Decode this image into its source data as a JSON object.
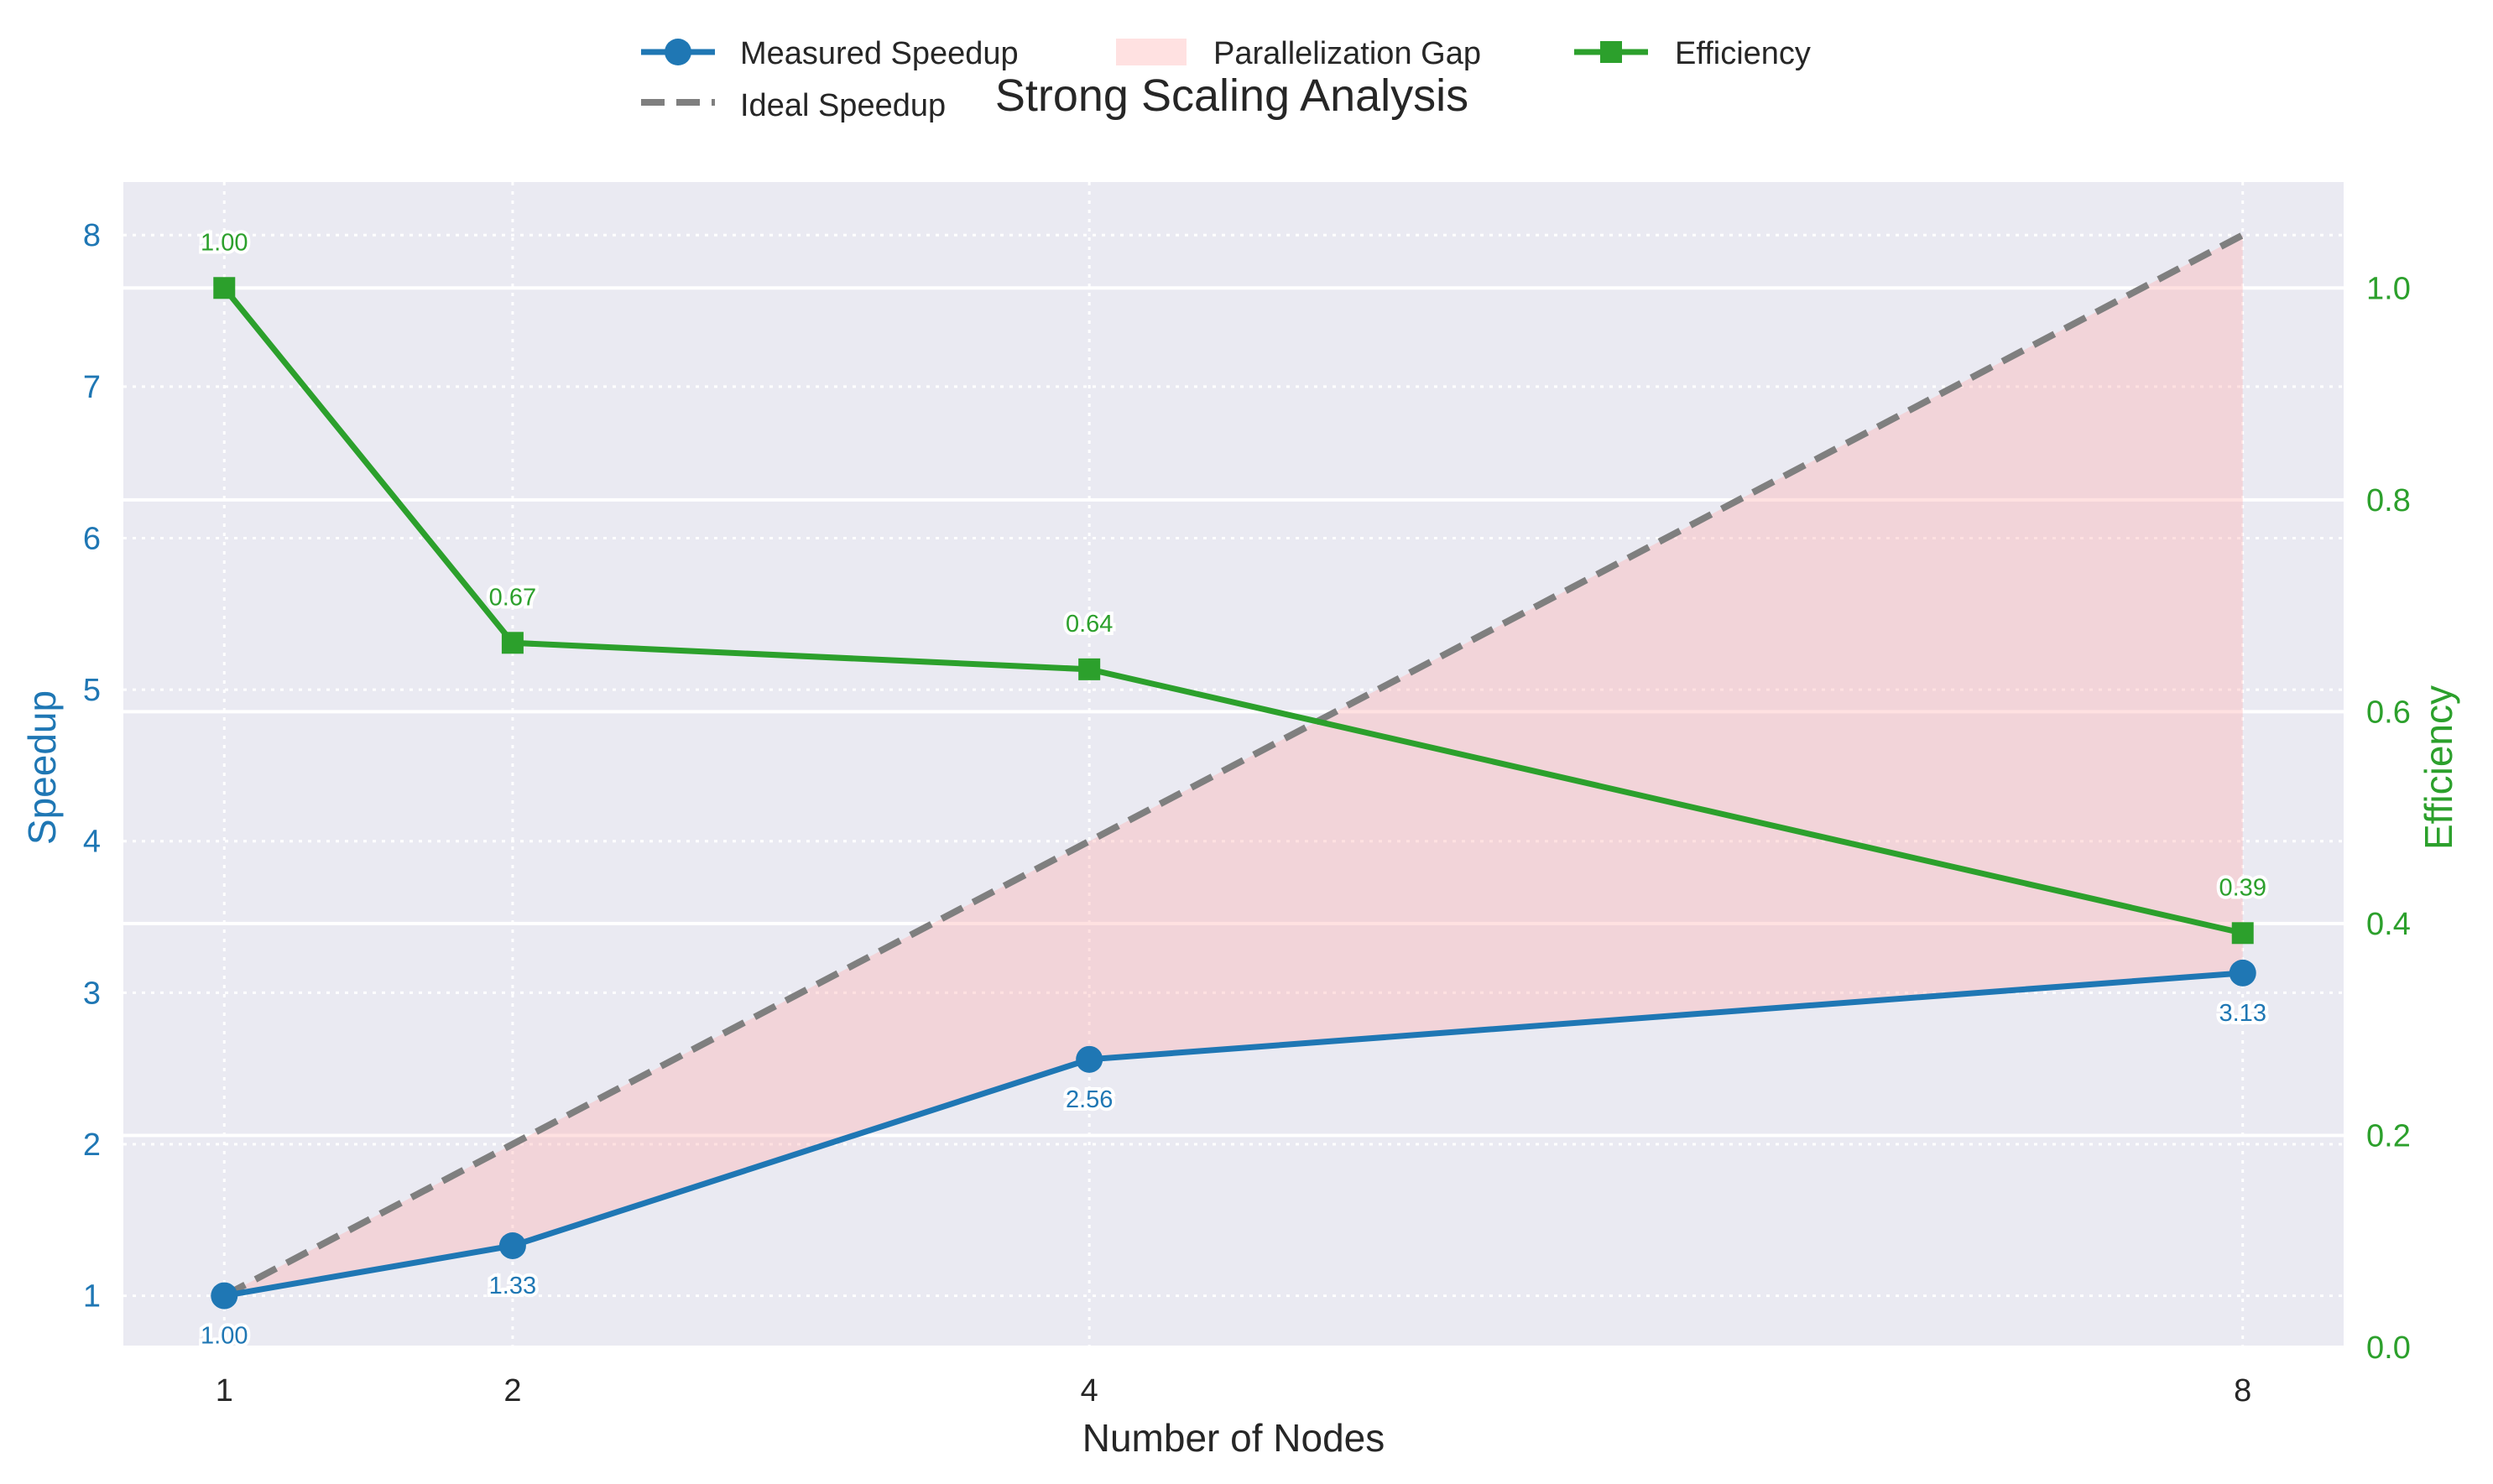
{
  "chart_data": {
    "type": "line",
    "title": "Strong Scaling Analysis",
    "xlabel": "Number of Nodes",
    "ylabel_left": "Speedup",
    "ylabel_right": "Efficiency",
    "x": [
      1,
      2,
      4,
      8
    ],
    "x_ticks": [
      "1",
      "2",
      "4",
      "8"
    ],
    "xlim": [
      0.65,
      8.35
    ],
    "ylim_left": [
      0.66,
      8.35
    ],
    "ylim_right": [
      0,
      1.1
    ],
    "yticks_left": [
      "1",
      "2",
      "3",
      "4",
      "5",
      "6",
      "7",
      "8"
    ],
    "yticks_right": [
      "0.0",
      "0.2",
      "0.4",
      "0.6",
      "0.8",
      "1.0"
    ],
    "grid": true,
    "legend_position": "top-center",
    "series": [
      {
        "name": "Measured Speedup",
        "axis": "left",
        "marker": "circle",
        "color": "#1f77b4",
        "values": [
          1.0,
          1.33,
          2.56,
          3.13
        ],
        "labels": [
          "1.00",
          "1.33",
          "2.56",
          "3.13"
        ]
      },
      {
        "name": "Ideal Speedup",
        "axis": "left",
        "style": "dashed",
        "color": "#7f7f7f",
        "values": [
          1,
          2,
          4,
          8
        ]
      },
      {
        "name": "Efficiency",
        "axis": "right",
        "marker": "square",
        "color": "#2ca02c",
        "values": [
          1.0,
          0.665,
          0.64,
          0.391
        ],
        "labels": [
          "1.00",
          "0.67",
          "0.64",
          "0.39"
        ]
      }
    ],
    "fill": {
      "name": "Parallelization Gap",
      "between": [
        "Measured Speedup",
        "Ideal Speedup"
      ],
      "color": "#ffb3b3"
    },
    "legend": [
      "Measured Speedup",
      "Parallelization Gap",
      "Efficiency",
      "Ideal Speedup"
    ],
    "colors": {
      "plot_bg": "#eaeaf2",
      "speedup": "#1f77b4",
      "ideal": "#7f7f7f",
      "efficiency": "#2ca02c",
      "gap": "#ffb3b3"
    }
  }
}
